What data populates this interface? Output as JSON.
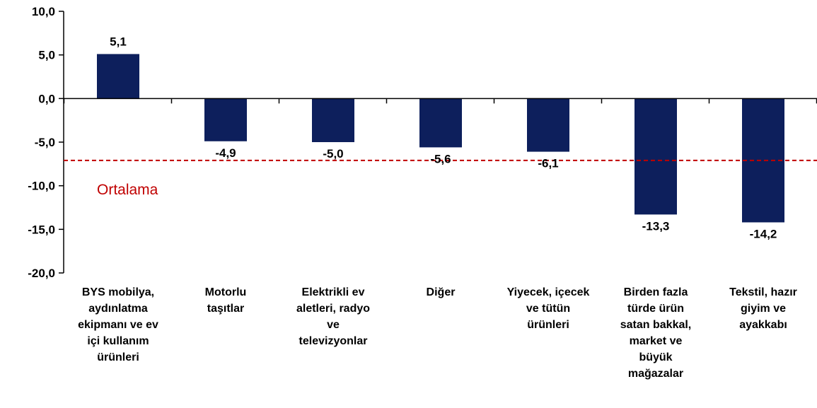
{
  "chart_data": {
    "type": "bar",
    "categories": [
      "BYS mobilya, aydınlatma ekipmanı ve ev içi kullanım ürünleri",
      "Motorlu taşıtlar",
      "Elektrikli ev aletleri, radyo ve televizyonlar",
      "Diğer",
      "Yiyecek, içecek ve tütün ürünleri",
      "Birden fazla türde ürün satan bakkal, market ve büyük mağazalar",
      "Tekstil, hazır giyim ve ayakkabı"
    ],
    "category_lines": [
      [
        "BYS mobilya,",
        "aydınlatma",
        "ekipmanı ve ev",
        "içi kullanım",
        "ürünleri"
      ],
      [
        "Motorlu",
        "taşıtlar"
      ],
      [
        "Elektrikli ev",
        "aletleri, radyo",
        "ve",
        "televizyonlar"
      ],
      [
        "Diğer"
      ],
      [
        "Yiyecek, içecek",
        "ve tütün",
        "ürünleri"
      ],
      [
        "Birden fazla",
        "türde ürün",
        "satan bakkal,",
        "market ve",
        "büyük",
        "mağazalar"
      ],
      [
        "Tekstil, hazır",
        "giyim ve",
        "ayakkabı"
      ]
    ],
    "values": [
      5.1,
      -4.9,
      -5.0,
      -5.6,
      -6.1,
      -13.3,
      -14.2
    ],
    "value_labels": [
      "5,1",
      "-4,9",
      "-5,0",
      "-5,6",
      "-6,1",
      "-13,3",
      "-14,2"
    ],
    "ylim": [
      -20,
      10
    ],
    "yticks": [
      10,
      5,
      0,
      -5,
      -10,
      -15,
      -20
    ],
    "ytick_labels": [
      "10,0",
      "5,0",
      "0,0",
      "-5,0",
      "-10,0",
      "-15,0",
      "-20,0"
    ],
    "average": {
      "label": "Ortalama",
      "value": -7.1,
      "color": "#c00000"
    },
    "bar_color": "#0d1f5c",
    "grid": false,
    "title": "",
    "xlabel": "",
    "ylabel": ""
  }
}
